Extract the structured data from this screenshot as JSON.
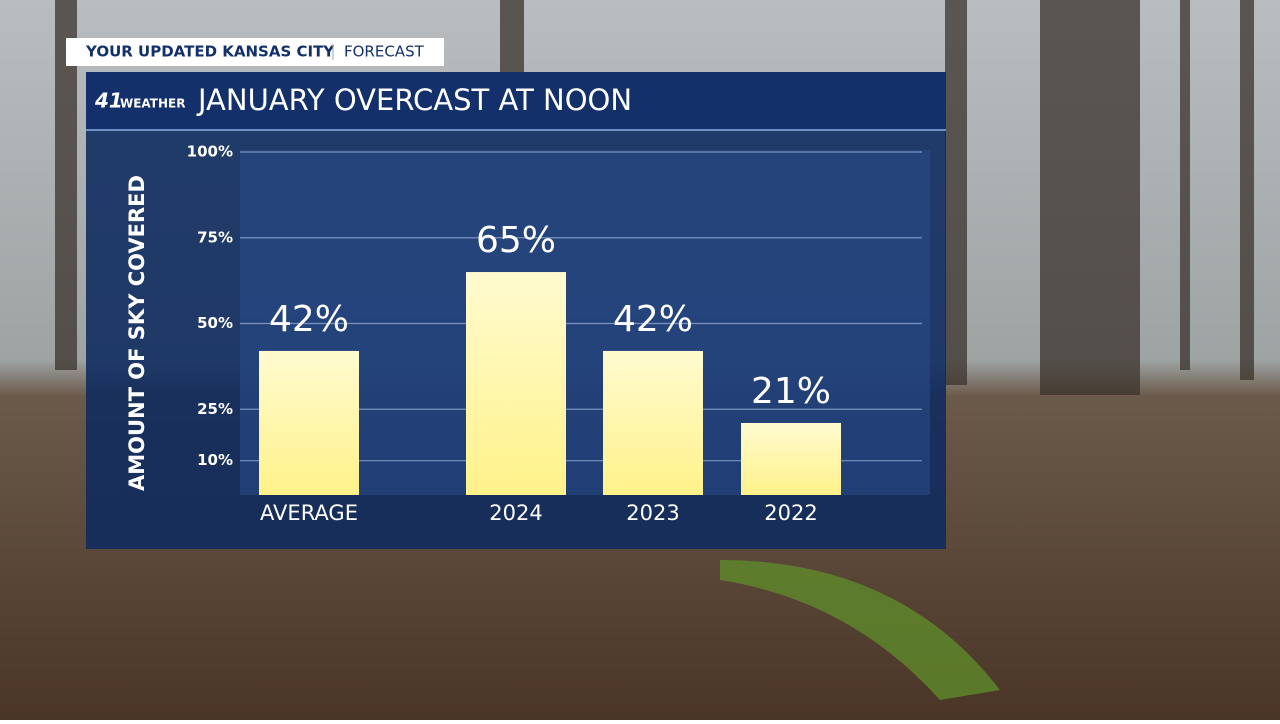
{
  "header": {
    "show": "YOUR UPDATED KANSAS CITY",
    "segment": "FORECAST",
    "logo_number": "41",
    "logo_text": "WEATHER"
  },
  "chart_data": {
    "type": "bar",
    "title": "JANUARY OVERCAST AT NOON",
    "y_label": "AMOUNT OF SKY COVERED",
    "categories": [
      "AVERAGE",
      "2024",
      "2023",
      "2022"
    ],
    "values": [
      42,
      65,
      42,
      21
    ],
    "value_labels": [
      "42%",
      "65%",
      "42%",
      "21%"
    ],
    "color": "#fff7a8",
    "ylim": [
      0,
      100
    ],
    "yticks": [
      {
        "value": 10,
        "label": "10%"
      },
      {
        "value": 25,
        "label": "25%"
      },
      {
        "value": 50,
        "label": "50%"
      },
      {
        "value": 75,
        "label": "75%"
      },
      {
        "value": 100,
        "label": "100%"
      }
    ],
    "grid": true
  }
}
